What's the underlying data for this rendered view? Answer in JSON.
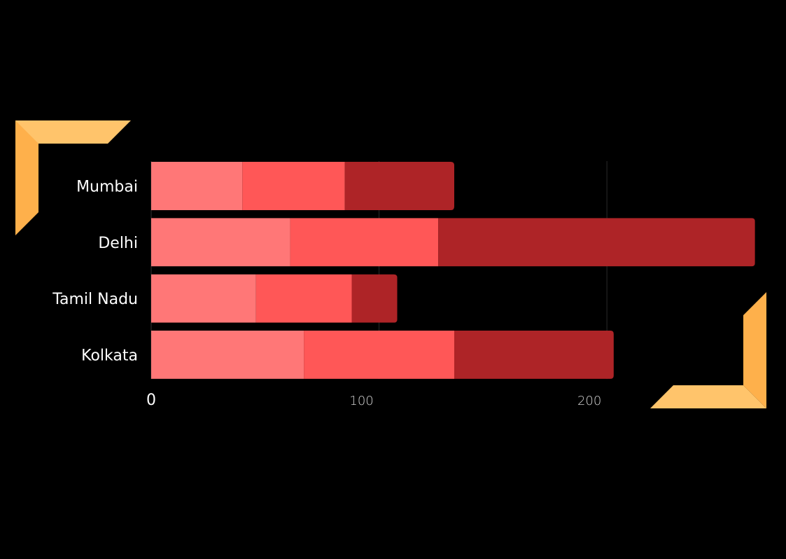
{
  "colors": {
    "background": "#000000",
    "segment_colors": [
      "#ff7777",
      "#ff5757",
      "#ae2427"
    ],
    "bracket_light": "#ffc46b",
    "bracket_dark": "#feb04b",
    "category_label": "#ffffff",
    "tick_label": "#cfcfcf",
    "gridline": "#2a2a2a"
  },
  "chart_data": {
    "type": "bar",
    "orientation": "horizontal",
    "stacked": true,
    "categories": [
      "Mumbai",
      "Delhi",
      "Tamil Nadu",
      "Kolkata"
    ],
    "series": [
      {
        "values": [
          40,
          61,
          46,
          67
        ]
      },
      {
        "values": [
          45,
          65,
          42,
          66
        ]
      },
      {
        "values": [
          48,
          139,
          20,
          70
        ]
      }
    ],
    "xlim": [
      0,
      266
    ],
    "xticks": [
      0,
      100,
      200
    ],
    "xtick_labels": [
      "0",
      "100",
      "200"
    ],
    "grid": true,
    "legend": "none"
  }
}
